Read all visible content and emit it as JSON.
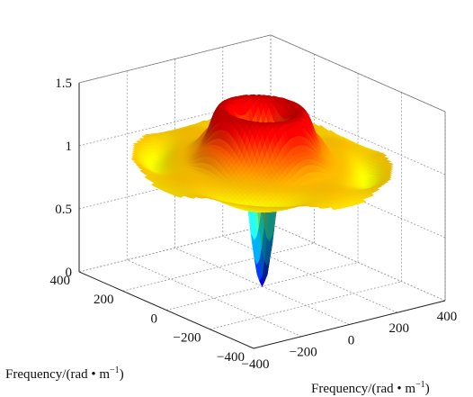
{
  "chart_data": {
    "type": "surface",
    "title": "",
    "xlabel": "Frequency/(rad • m",
    "xlabel_sup": "−1",
    "xlabel_close": ")",
    "ylabel": "Frequency/(rad • m",
    "ylabel_sup": "−1",
    "ylabel_close": ")",
    "zlabel": "",
    "xlim": [
      -400,
      400
    ],
    "ylim": [
      -400,
      400
    ],
    "zlim": [
      0,
      1.5
    ],
    "x_ticks": [
      "−400",
      "−200",
      "0",
      "200",
      "400"
    ],
    "y_ticks": [
      "−400",
      "−200",
      "0",
      "200",
      "400"
    ],
    "z_ticks": [
      "0",
      "0.5",
      "1",
      "1.5"
    ],
    "grid": true,
    "colormap": "jet",
    "surface": {
      "description_values": {
        "center_value": 0,
        "central_dip_radius": 60,
        "plateau_value": 1.0,
        "ring_peak_value": 1.45,
        "ring_peak_radius_inner": 90,
        "ring_peak_radius_outer": 150,
        "outer_value": 1.0,
        "domain_radius": 400
      }
    }
  }
}
